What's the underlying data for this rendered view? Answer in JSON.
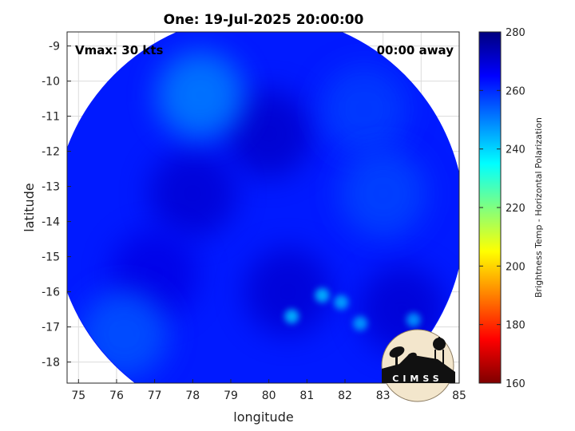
{
  "chart_data": {
    "type": "heatmap",
    "title": "One: 19-Jul-2025 20:00:00",
    "xlabel": "longitude",
    "ylabel": "latitude",
    "xlim": [
      74.7,
      85
    ],
    "ylim": [
      -18.6,
      -8.6
    ],
    "xticks": [
      75,
      76,
      77,
      78,
      79,
      80,
      81,
      82,
      83,
      84,
      85
    ],
    "yticks": [
      -9,
      -10,
      -11,
      -12,
      -13,
      -14,
      -15,
      -16,
      -17,
      -18
    ],
    "grid": true,
    "annotations": {
      "vmax": "Vmax: 30 kts",
      "time_away": "00:00 away"
    },
    "colorbar": {
      "label": "Brightness Temp - Horizontal Polarization",
      "min": 160,
      "max": 280,
      "ticks": [
        280,
        260,
        240,
        220,
        200,
        180,
        160
      ],
      "colors": [
        "#7f0000",
        "#ff0000",
        "#ff8000",
        "#ffff00",
        "#80ff80",
        "#00ffff",
        "#0080ff",
        "#0000ff",
        "#00007f"
      ]
    },
    "swath": {
      "center": [
        79.75,
        -13.95
      ],
      "radius_deg": 5.6,
      "background_temp": 262,
      "features": [
        {
          "lon": 80.0,
          "lat": -11.5,
          "temp": 271
        },
        {
          "lon": 78.0,
          "lat": -13.2,
          "temp": 270
        },
        {
          "lon": 77.0,
          "lat": -15.5,
          "temp": 268
        },
        {
          "lon": 80.5,
          "lat": -16.0,
          "temp": 270
        },
        {
          "lon": 83.5,
          "lat": -16.5,
          "temp": 270
        },
        {
          "lon": 82.5,
          "lat": -10.8,
          "temp": 258
        },
        {
          "lon": 83.0,
          "lat": -13.2,
          "temp": 257
        },
        {
          "lon": 76.2,
          "lat": -17.2,
          "temp": 255
        },
        {
          "lon": 81.4,
          "lat": -16.1,
          "temp": 244
        },
        {
          "lon": 80.6,
          "lat": -16.7,
          "temp": 244
        },
        {
          "lon": 81.9,
          "lat": -16.3,
          "temp": 246
        },
        {
          "lon": 82.4,
          "lat": -16.9,
          "temp": 247
        },
        {
          "lon": 83.8,
          "lat": -16.8,
          "temp": 248
        },
        {
          "lon": 78.2,
          "lat": -10.4,
          "temp": 250
        }
      ]
    }
  },
  "logo": {
    "text": "CIMSS"
  }
}
